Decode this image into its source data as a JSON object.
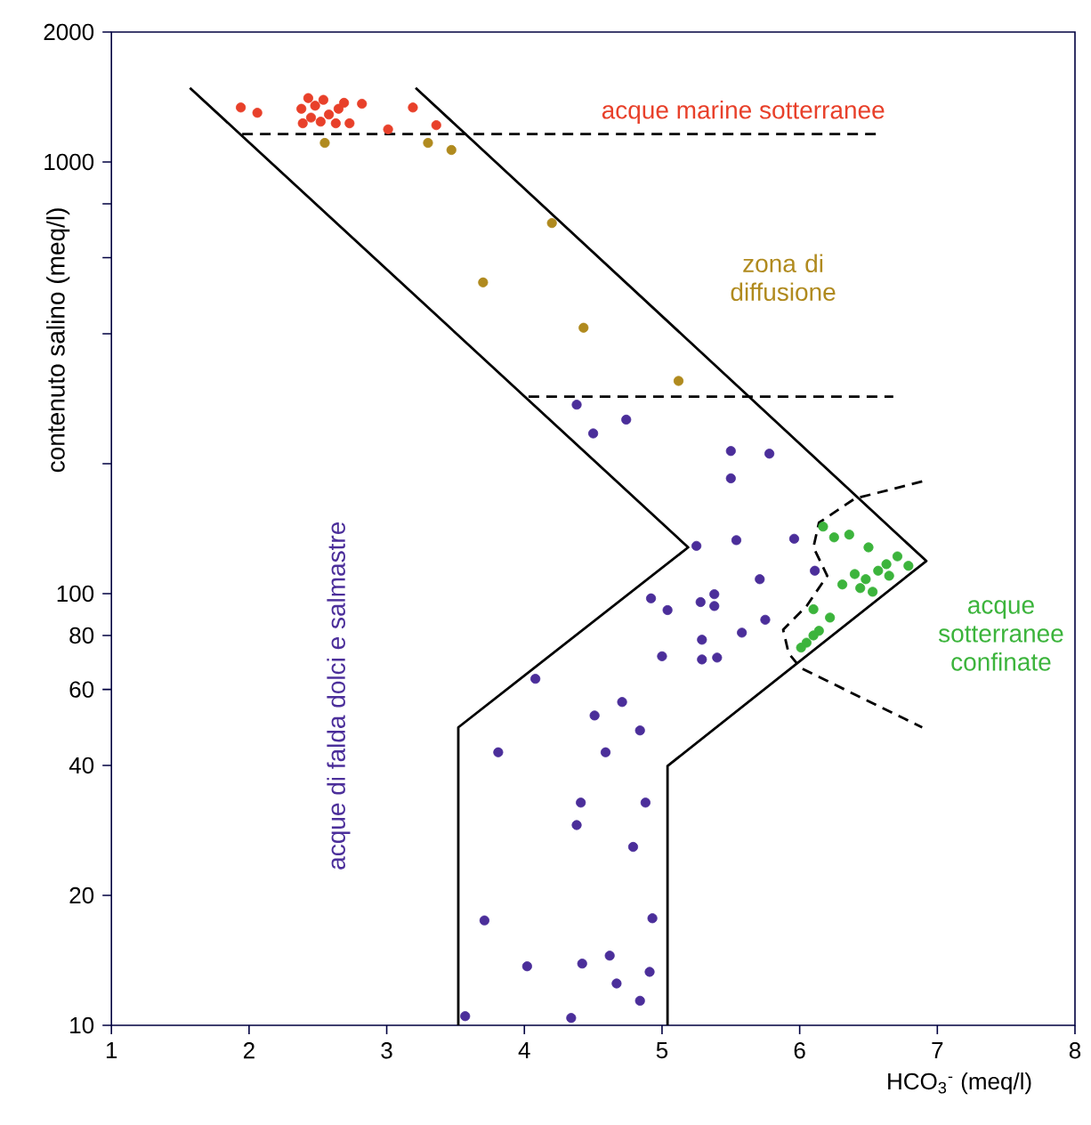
{
  "chart_data": {
    "type": "scatter",
    "marker": "circle",
    "xlabel": "HCO$_{3}$$^{-}$ (meq/l)",
    "ylabel": "contenuto salino (meq/l)",
    "log": "y",
    "xlim": [
      1,
      8
    ],
    "ylim": [
      10,
      2000
    ],
    "xticks": [
      1,
      2,
      3,
      4,
      5,
      6,
      7,
      8
    ],
    "yticks": [
      10,
      20,
      40,
      60,
      80,
      100,
      {
        "value": 200,
        "label": null
      },
      {
        "value": 400,
        "label": null
      },
      {
        "value": 600,
        "label": null
      },
      {
        "value": 800,
        "label": null
      },
      1000,
      2000
    ],
    "annotations": [
      "acque marine sotterranee",
      "zona di diffusione",
      "acque di falda dolci e salmastre",
      "acque sotterranee confinate"
    ],
    "series": [
      {
        "color": "#e8402a",
        "x": [
          1.94,
          2.06,
          2.82,
          3.19,
          3.01,
          3.36,
          2.38,
          2.43,
          2.48,
          2.54,
          2.45,
          2.52,
          2.58,
          2.65,
          2.69,
          2.73,
          2.63,
          2.39
        ],
        "values": [
          1337,
          1300,
          1364,
          1337,
          1190,
          1217,
          1328,
          1406,
          1350,
          1393,
          1267,
          1240,
          1288,
          1328,
          1371,
          1229,
          1229,
          1229
        ]
      },
      {
        "color": "#b08a1e",
        "x": [
          2.55,
          3.3,
          3.47,
          4.2,
          3.7,
          4.43,
          5.12
        ],
        "values": [
          1107,
          1107,
          1066,
          722,
          526,
          413,
          311
        ]
      },
      {
        "color": "#4b2e9a",
        "x": [
          4.38,
          4.74,
          4.5,
          5.5,
          5.78,
          5.5,
          5.25,
          5.54,
          5.96,
          6.11,
          5.71,
          4.92,
          5.04,
          5.28,
          5.38,
          5.38,
          5.75,
          5.58,
          5.29,
          5.0,
          5.29,
          5.4,
          4.08,
          4.71,
          4.51,
          4.84,
          3.81,
          4.41,
          4.88,
          4.38,
          4.79,
          3.71,
          4.93,
          4.02,
          4.42,
          4.62,
          4.91,
          4.67,
          4.84,
          3.57,
          4.34,
          4.59
        ],
        "values": [
          274,
          253,
          235,
          214,
          211,
          185,
          129,
          133,
          134,
          113,
          108,
          97.5,
          91.6,
          95.6,
          99.7,
          93.6,
          87,
          81.2,
          78.2,
          71.6,
          70.4,
          71.1,
          63.5,
          56.1,
          52.2,
          48.2,
          42.9,
          32.8,
          32.8,
          29.1,
          25.9,
          17.5,
          17.7,
          13.7,
          13.9,
          14.5,
          13.3,
          12.5,
          11.4,
          10.5,
          10.4,
          42.9
        ]
      },
      {
        "color": "#3cb43c",
        "x": [
          6.17,
          6.25,
          6.36,
          6.5,
          6.71,
          6.79,
          6.4,
          6.48,
          6.57,
          6.63,
          6.31,
          6.44,
          6.53,
          6.65,
          6.1,
          6.22,
          6.14,
          6.05,
          6.01,
          6.1
        ],
        "values": [
          143,
          135,
          137,
          128,
          122,
          116,
          111,
          108,
          113,
          117,
          105,
          103,
          101,
          110,
          92,
          88,
          82,
          77,
          75,
          80
        ]
      },
      {
        "type": "line",
        "marker": "none",
        "color": "#000000",
        "line_style": "solid",
        "x": [
          1.57,
          5.19,
          3.52,
          3.52
        ],
        "values": [
          1485,
          128,
          49,
          10
        ]
      },
      {
        "type": "line",
        "marker": "none",
        "color": "#000000",
        "line_style": "solid",
        "x": [
          3.21,
          6.92,
          5.04,
          5.04
        ],
        "values": [
          1485,
          119,
          39.9,
          10
        ]
      },
      {
        "type": "line",
        "marker": "none",
        "color": "#000000",
        "line_style": "dashed",
        "x": [
          1.95,
          6.59
        ],
        "values": [
          1160,
          1160
        ]
      },
      {
        "type": "line",
        "marker": "none",
        "color": "#000000",
        "line_style": "dashed",
        "x": [
          4.03,
          6.68
        ],
        "values": [
          286,
          286
        ]
      },
      {
        "type": "line",
        "marker": "none",
        "color": "#000000",
        "line_style": "dashed",
        "x": [
          6.89,
          6.4,
          6.14,
          6.1,
          6.2,
          6.05,
          5.88,
          5.92,
          6.01,
          6.89
        ],
        "values": [
          182,
          166,
          146,
          128,
          110,
          93.6,
          82.5,
          72.7,
          67.2,
          49
        ]
      }
    ]
  }
}
